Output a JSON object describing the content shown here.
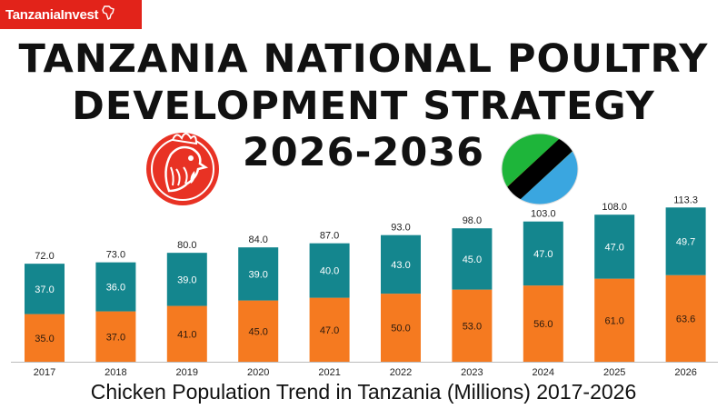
{
  "brand": {
    "logo_text": "TanzaniaInvest"
  },
  "header": {
    "title_line1": "TANZANIA NATIONAL POULTRY",
    "title_line2": "DEVELOPMENT STRATEGY",
    "title_line3": "2026-2036"
  },
  "icons": {
    "rooster": "rooster-icon",
    "flag": "tanzania-flag-icon"
  },
  "colors": {
    "bottom_segment": "#f57a20",
    "top_segment": "#14868e",
    "brand": "#e2231a"
  },
  "chart_data": {
    "type": "bar",
    "stacked": true,
    "title": "Chicken Population Trend in Tanzania (Millions) 2017-2026",
    "categories": [
      "2017",
      "2018",
      "2019",
      "2020",
      "2021",
      "2022",
      "2023",
      "2024",
      "2025",
      "2026"
    ],
    "series": [
      {
        "values": [
          35.0,
          37.0,
          41.0,
          45.0,
          47.0,
          50.0,
          53.0,
          56.0,
          61.0,
          63.6
        ],
        "color": "#f57a20"
      },
      {
        "values": [
          37.0,
          36.0,
          39.0,
          39.0,
          40.0,
          43.0,
          45.0,
          47.0,
          47.0,
          49.7
        ],
        "color": "#14868e"
      }
    ],
    "totals": [
      72.0,
      73.0,
      80.0,
      84.0,
      87.0,
      93.0,
      98.0,
      103.0,
      108.0,
      113.3
    ],
    "ylim": [
      0,
      120
    ],
    "grid": false,
    "legend": "none"
  }
}
